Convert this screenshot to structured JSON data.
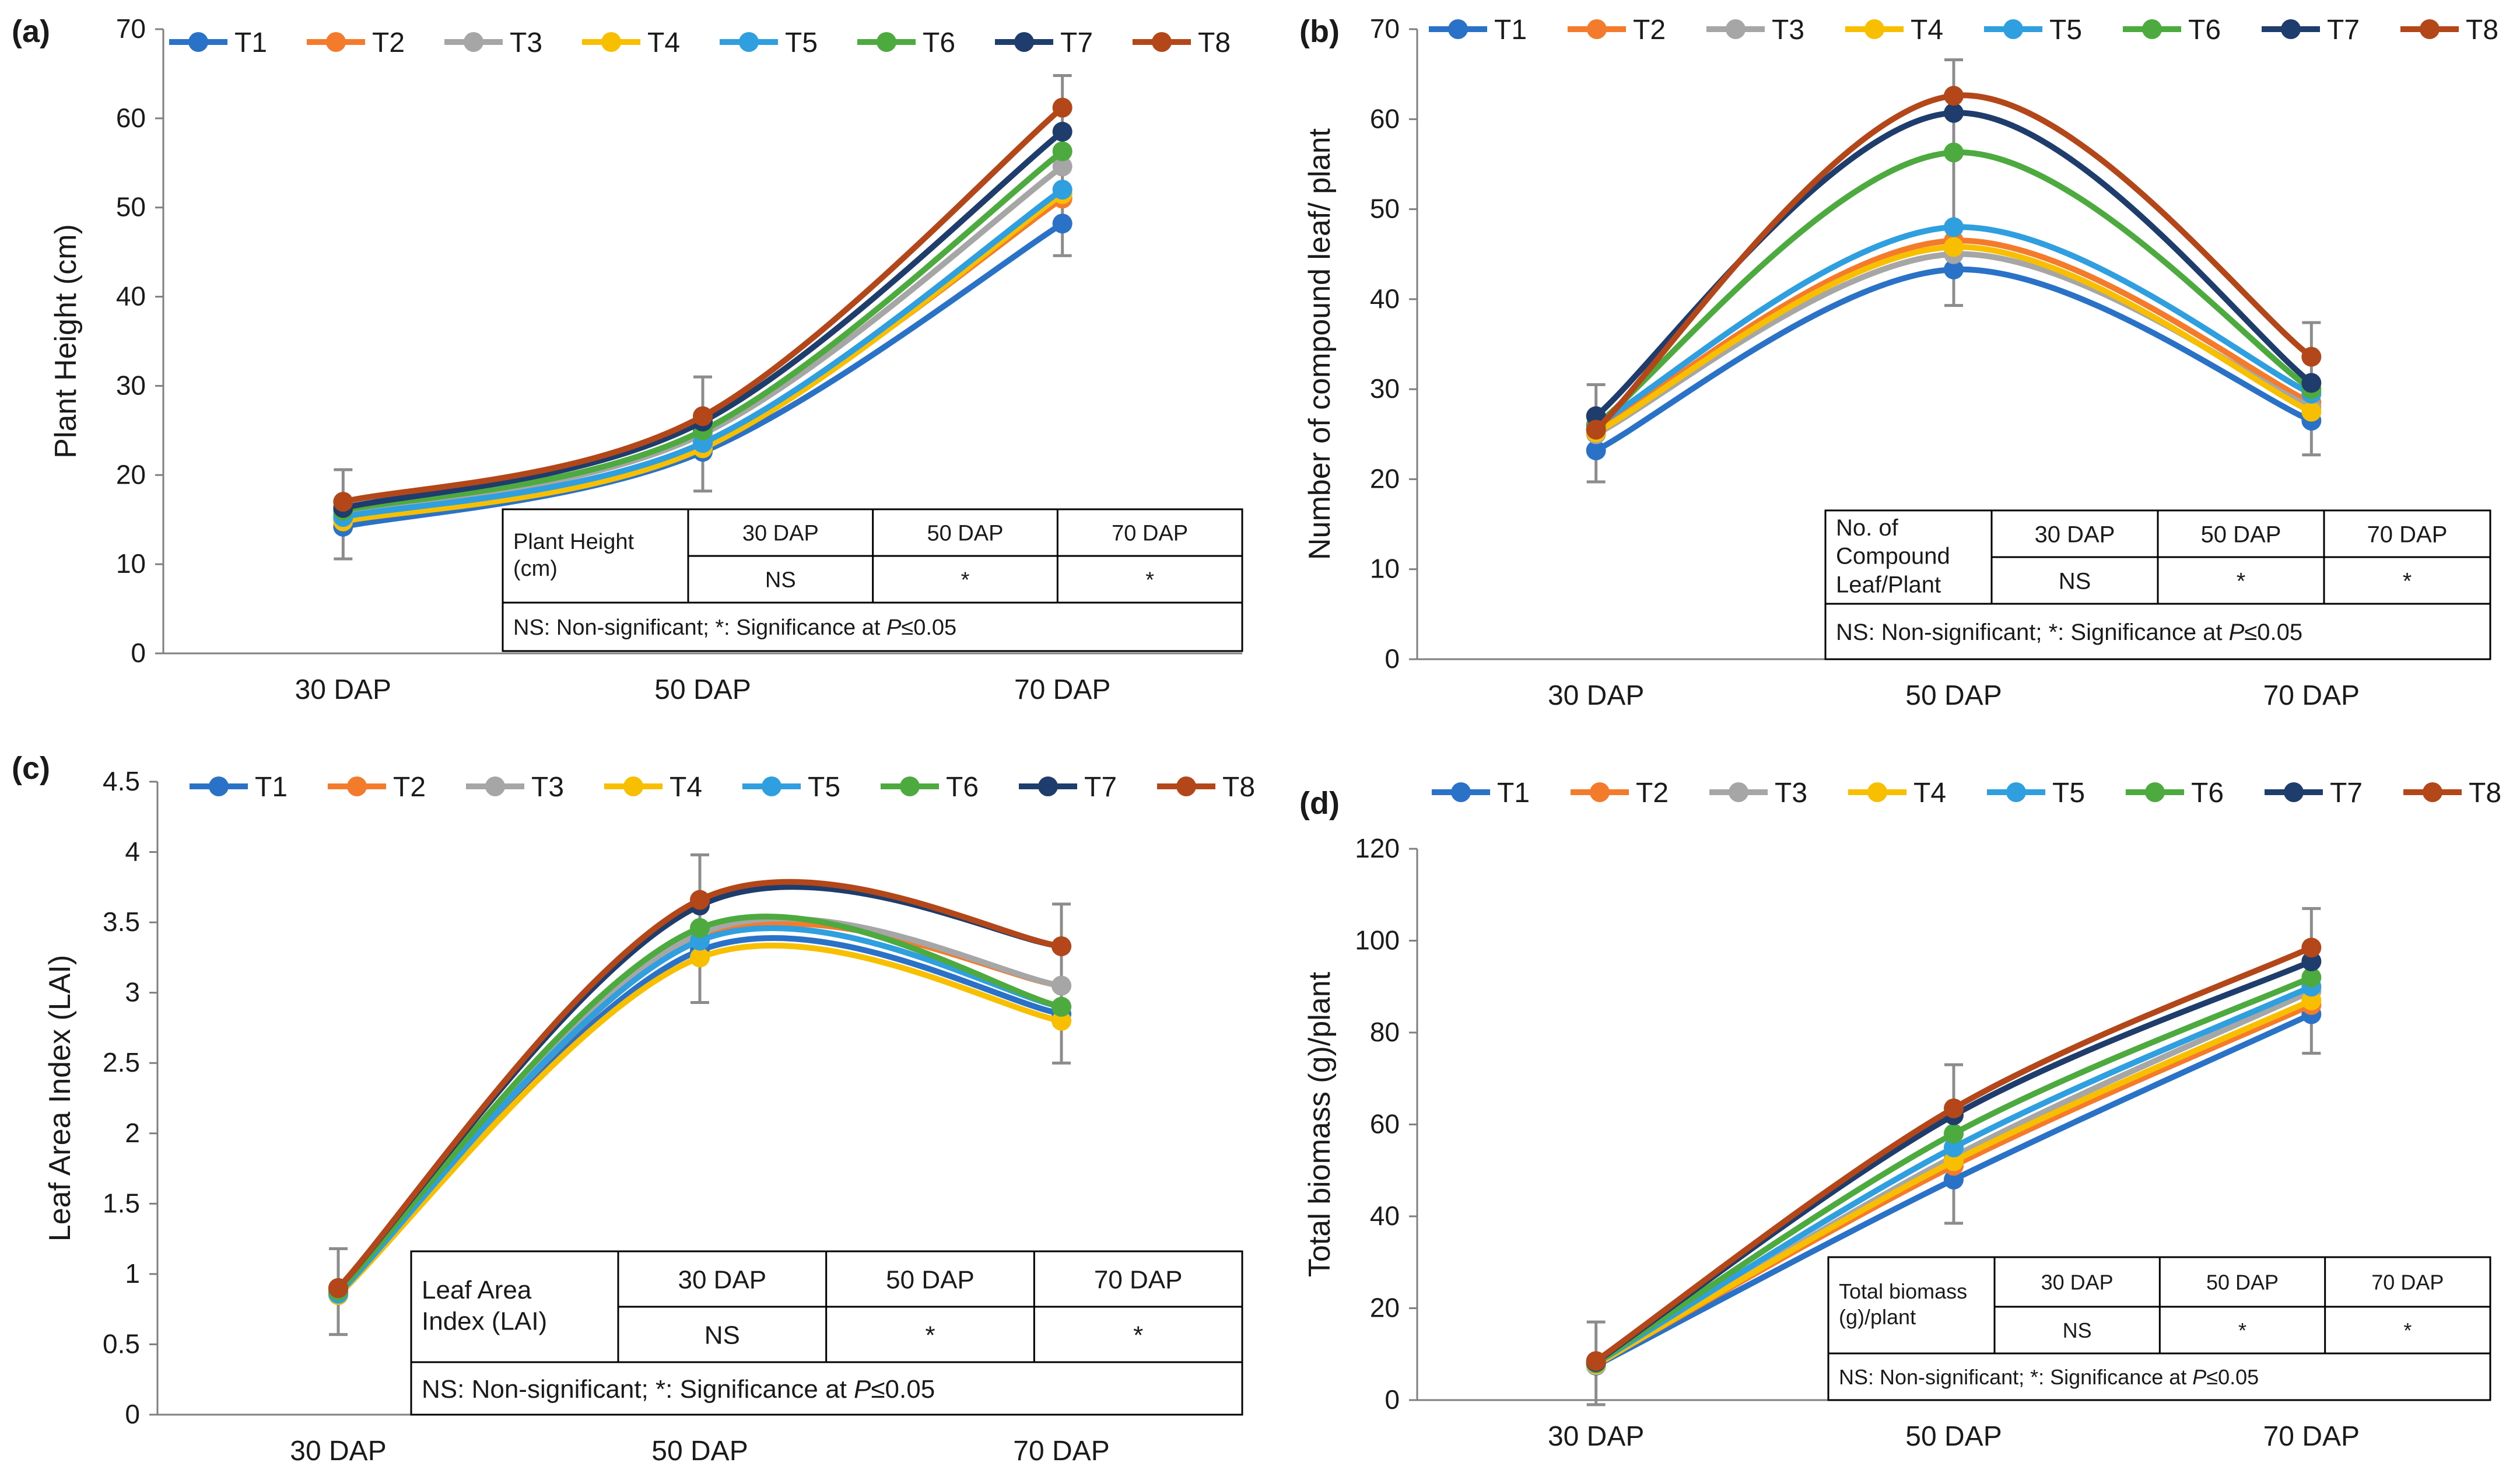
{
  "figure": {
    "series_names": [
      "T1",
      "T2",
      "T3",
      "T4",
      "T5",
      "T6",
      "T7",
      "T8"
    ],
    "series_colors": [
      "#2a72c7",
      "#f47a2c",
      "#a6a6a6",
      "#f8bf00",
      "#2f9fe0",
      "#4daa3f",
      "#1f3d6c",
      "#b3471a"
    ],
    "x_categories": [
      "30 DAP",
      "50 DAP",
      "70 DAP"
    ],
    "footnote": "NS: Non-significant; *: Significance at P≤0.05",
    "footnote_prefix": "NS: Non-significant; *: Significance at ",
    "footnote_p": "P",
    "footnote_suffix": "≤0.05"
  },
  "chart_data": [
    {
      "panel_label": "(a)",
      "type": "line",
      "title": "",
      "xlabel": "",
      "ylabel": "Plant Height (cm)",
      "categories": [
        "30 DAP",
        "50 DAP",
        "70 DAP"
      ],
      "ylim": [
        0,
        70
      ],
      "yticks": [
        0,
        10,
        20,
        30,
        40,
        50,
        60,
        70
      ],
      "series": [
        {
          "name": "T1",
          "values": [
            14.2,
            22.6,
            48.2
          ]
        },
        {
          "name": "T2",
          "values": [
            15.0,
            23.4,
            51.0
          ]
        },
        {
          "name": "T3",
          "values": [
            15.6,
            24.6,
            54.6
          ]
        },
        {
          "name": "T4",
          "values": [
            14.8,
            23.0,
            51.5
          ]
        },
        {
          "name": "T5",
          "values": [
            15.3,
            23.6,
            52.0
          ]
        },
        {
          "name": "T6",
          "values": [
            16.0,
            25.0,
            56.3
          ]
        },
        {
          "name": "T7",
          "values": [
            16.3,
            26.0,
            58.5
          ]
        },
        {
          "name": "T8",
          "values": [
            17.0,
            26.6,
            61.2
          ]
        }
      ],
      "error_bars": [
        3.6,
        4.4,
        3.6
      ],
      "stats_table": {
        "parameter": "Plant Height (cm)",
        "parameter_lines": [
          "Plant Height",
          "(cm)"
        ],
        "headers": [
          "30 DAP",
          "50 DAP",
          "70 DAP"
        ],
        "values": [
          "NS",
          "*",
          "*"
        ]
      }
    },
    {
      "panel_label": "(b)",
      "type": "line",
      "title": "",
      "xlabel": "",
      "ylabel": "Number of compound leaf/ plant",
      "categories": [
        "30 DAP",
        "50 DAP",
        "70 DAP"
      ],
      "ylim": [
        0,
        70
      ],
      "yticks": [
        0,
        10,
        20,
        30,
        40,
        50,
        60,
        70
      ],
      "series": [
        {
          "name": "T1",
          "values": [
            23.2,
            43.3,
            26.5
          ]
        },
        {
          "name": "T2",
          "values": [
            25.5,
            46.5,
            28.5
          ]
        },
        {
          "name": "T3",
          "values": [
            25.0,
            45.0,
            28.0
          ]
        },
        {
          "name": "T4",
          "values": [
            25.2,
            45.8,
            27.5
          ]
        },
        {
          "name": "T5",
          "values": [
            26.0,
            48.0,
            29.5
          ]
        },
        {
          "name": "T6",
          "values": [
            26.0,
            56.3,
            30.0
          ]
        },
        {
          "name": "T7",
          "values": [
            27.0,
            60.7,
            30.7
          ]
        },
        {
          "name": "T8",
          "values": [
            25.5,
            62.6,
            33.6
          ]
        }
      ],
      "error_bars": [
        3.5,
        4.0,
        3.8
      ],
      "stats_table": {
        "parameter": "No. of Compound Leaf/Plant",
        "parameter_lines": [
          "No. of",
          "Compound",
          "Leaf/Plant"
        ],
        "headers": [
          "30 DAP",
          "50 DAP",
          "70 DAP"
        ],
        "values": [
          "NS",
          "*",
          "*"
        ]
      }
    },
    {
      "panel_label": "(c)",
      "type": "line",
      "title": "",
      "xlabel": "",
      "ylabel": "Leaf Area Index (LAI)",
      "categories": [
        "30 DAP",
        "50 DAP",
        "70 DAP"
      ],
      "ylim": [
        0,
        4.5
      ],
      "yticks": [
        0,
        0.5,
        1,
        1.5,
        2,
        2.5,
        3,
        3.5,
        4,
        4.5
      ],
      "series": [
        {
          "name": "T1",
          "values": [
            0.85,
            3.3,
            2.85
          ]
        },
        {
          "name": "T2",
          "values": [
            0.86,
            3.38,
            3.05
          ]
        },
        {
          "name": "T3",
          "values": [
            0.87,
            3.42,
            3.05
          ]
        },
        {
          "name": "T4",
          "values": [
            0.85,
            3.25,
            2.8
          ]
        },
        {
          "name": "T5",
          "values": [
            0.86,
            3.37,
            2.9
          ]
        },
        {
          "name": "T6",
          "values": [
            0.88,
            3.46,
            2.9
          ]
        },
        {
          "name": "T7",
          "values": [
            0.9,
            3.62,
            3.33
          ]
        },
        {
          "name": "T8",
          "values": [
            0.9,
            3.66,
            3.33
          ]
        }
      ],
      "error_bars": [
        0.28,
        0.32,
        0.3
      ],
      "stats_table": {
        "parameter": "Leaf Area Index (LAI)",
        "parameter_lines": [
          "Leaf Area",
          "Index (LAI)"
        ],
        "headers": [
          "30 DAP",
          "50 DAP",
          "70 DAP"
        ],
        "values": [
          "NS",
          "*",
          "*"
        ]
      }
    },
    {
      "panel_label": "(d)",
      "type": "line",
      "title": "",
      "xlabel": "",
      "ylabel": "Total biomass (g)/plant",
      "categories": [
        "30 DAP",
        "50 DAP",
        "70 DAP"
      ],
      "ylim": [
        0,
        120
      ],
      "yticks": [
        0,
        20,
        40,
        60,
        80,
        100,
        120
      ],
      "series": [
        {
          "name": "T1",
          "values": [
            7.5,
            48,
            84
          ]
        },
        {
          "name": "T2",
          "values": [
            7.8,
            51,
            86
          ]
        },
        {
          "name": "T3",
          "values": [
            7.6,
            53,
            89
          ]
        },
        {
          "name": "T4",
          "values": [
            7.7,
            52,
            87
          ]
        },
        {
          "name": "T5",
          "values": [
            8.0,
            55,
            90
          ]
        },
        {
          "name": "T6",
          "values": [
            8.1,
            58,
            92
          ]
        },
        {
          "name": "T7",
          "values": [
            8.3,
            62,
            95.5
          ]
        },
        {
          "name": "T8",
          "values": [
            8.5,
            63.5,
            98.5
          ]
        }
      ],
      "error_bars": [
        8.5,
        9.5,
        8.5
      ],
      "stats_table": {
        "parameter": "Total biomass (g)/plant",
        "parameter_lines": [
          "Total biomass",
          "(g)/plant"
        ],
        "headers": [
          "30 DAP",
          "50 DAP",
          "70 DAP"
        ],
        "values": [
          "NS",
          "*",
          "*"
        ]
      }
    }
  ]
}
